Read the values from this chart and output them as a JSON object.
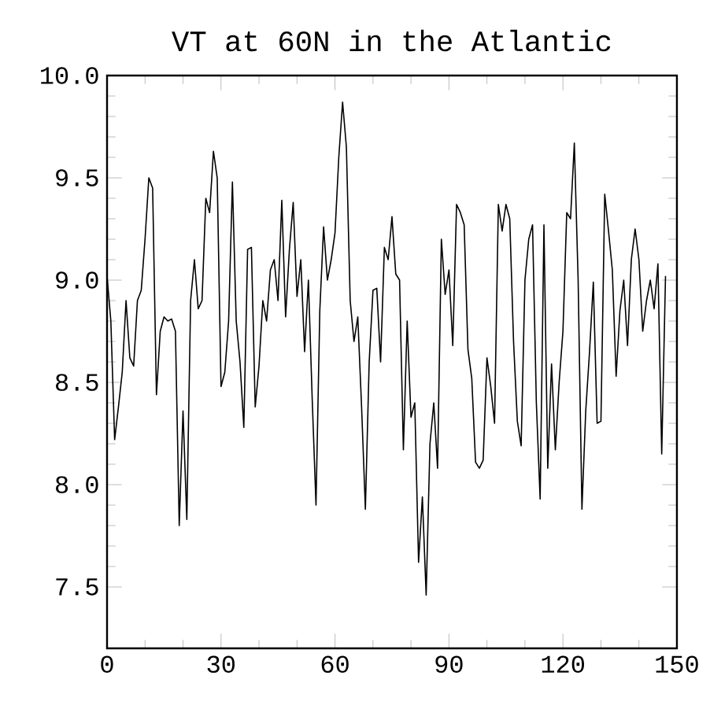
{
  "chart_data": {
    "type": "line",
    "title": "VT at 60N in the Atlantic",
    "color": "#000000",
    "x": [
      0,
      1,
      2,
      3,
      4,
      5,
      6,
      7,
      8,
      9,
      10,
      11,
      12,
      13,
      14,
      15,
      16,
      17,
      18,
      19,
      20,
      21,
      22,
      23,
      24,
      25,
      26,
      27,
      28,
      29,
      30,
      31,
      32,
      33,
      34,
      35,
      36,
      37,
      38,
      39,
      40,
      41,
      42,
      43,
      44,
      45,
      46,
      47,
      48,
      49,
      50,
      51,
      52,
      53,
      54,
      55,
      56,
      57,
      58,
      59,
      60,
      61,
      62,
      63,
      64,
      65,
      66,
      67,
      68,
      69,
      70,
      71,
      72,
      73,
      74,
      75,
      76,
      77,
      78,
      79,
      80,
      81,
      82,
      83,
      84,
      85,
      86,
      87,
      88,
      89,
      90,
      91,
      92,
      93,
      94,
      95,
      96,
      97,
      98,
      99,
      100,
      101,
      102,
      103,
      104,
      105,
      106,
      107,
      108,
      109,
      110,
      111,
      112,
      113,
      114,
      115,
      116,
      117,
      118,
      119,
      120,
      121,
      122,
      123,
      124,
      125,
      126,
      127,
      128,
      129,
      130,
      131,
      132,
      133,
      134,
      135,
      136,
      137,
      138,
      139,
      140,
      141,
      142,
      143,
      144,
      145,
      146,
      147
    ],
    "values": [
      9.02,
      8.8,
      8.22,
      8.38,
      8.55,
      8.9,
      8.62,
      8.58,
      8.9,
      8.95,
      9.2,
      9.5,
      9.45,
      8.44,
      8.75,
      8.82,
      8.8,
      8.81,
      8.75,
      7.8,
      8.36,
      7.83,
      8.9,
      9.1,
      8.86,
      8.9,
      9.4,
      9.33,
      9.63,
      9.5,
      8.48,
      8.55,
      8.8,
      9.48,
      8.8,
      8.6,
      8.28,
      9.15,
      9.16,
      8.38,
      8.58,
      8.9,
      8.8,
      9.05,
      9.1,
      8.9,
      9.39,
      8.82,
      9.15,
      9.38,
      8.92,
      9.1,
      8.65,
      9.0,
      8.42,
      7.9,
      8.85,
      9.26,
      9.0,
      9.1,
      9.23,
      9.6,
      9.87,
      9.65,
      8.9,
      8.7,
      8.82,
      8.38,
      7.88,
      8.6,
      8.95,
      8.96,
      8.6,
      9.16,
      9.1,
      9.31,
      9.03,
      9.0,
      8.17,
      8.8,
      8.33,
      8.4,
      7.62,
      7.94,
      7.46,
      8.2,
      8.4,
      8.08,
      9.2,
      8.93,
      9.05,
      8.68,
      9.37,
      9.33,
      9.27,
      8.66,
      8.52,
      8.11,
      8.08,
      8.12,
      8.62,
      8.48,
      8.3,
      9.37,
      9.24,
      9.37,
      9.3,
      8.7,
      8.31,
      8.19,
      9.0,
      9.2,
      9.27,
      8.4,
      7.93,
      9.27,
      8.08,
      8.59,
      8.17,
      8.5,
      8.75,
      9.33,
      9.3,
      9.67,
      9.0,
      7.88,
      8.36,
      8.65,
      8.99,
      8.3,
      8.31,
      9.42,
      9.24,
      9.05,
      8.53,
      8.85,
      9.0,
      8.68,
      9.1,
      9.25,
      9.1,
      8.75,
      8.9,
      9.0,
      8.86,
      9.08,
      8.15,
      9.02
    ],
    "xlim": [
      0,
      150
    ],
    "ylim": [
      7.2,
      10.0
    ],
    "xticks": [
      0,
      30,
      60,
      90,
      120,
      150
    ],
    "yticks": [
      7.5,
      {
        "value": 8.0,
        "label": "8.0"
      },
      8.5,
      {
        "value": 9.0,
        "label": "9.0"
      },
      9.5,
      {
        "value": 10.0,
        "label": "10.0"
      }
    ]
  }
}
